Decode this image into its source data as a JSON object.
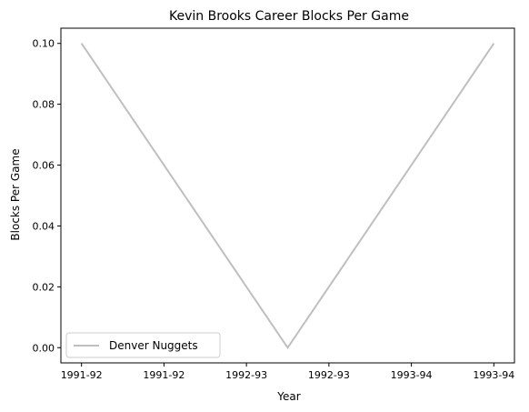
{
  "chart_data": {
    "type": "line",
    "title": "Kevin Brooks  Career Blocks Per Game",
    "xlabel": "Year",
    "ylabel": "Blocks Per Game",
    "x_tick_labels": [
      "1991-92",
      "1991-92",
      "1992-93",
      "1992-93",
      "1993-94",
      "1993-94"
    ],
    "x": [
      0,
      1,
      2
    ],
    "x_categories": [
      "1991-92",
      "1992-93",
      "1993-94"
    ],
    "series": [
      {
        "name": "Denver Nuggets",
        "values": [
          0.1,
          0.0,
          0.1
        ],
        "color": "#bfbfbf"
      }
    ],
    "ylim": [
      -0.005,
      0.105
    ],
    "yticks": [
      0.0,
      0.02,
      0.04,
      0.06,
      0.08,
      0.1
    ],
    "ytick_labels": [
      "0.00",
      "0.02",
      "0.04",
      "0.06",
      "0.08",
      "0.10"
    ],
    "grid": false,
    "legend_position": "lower-left"
  }
}
